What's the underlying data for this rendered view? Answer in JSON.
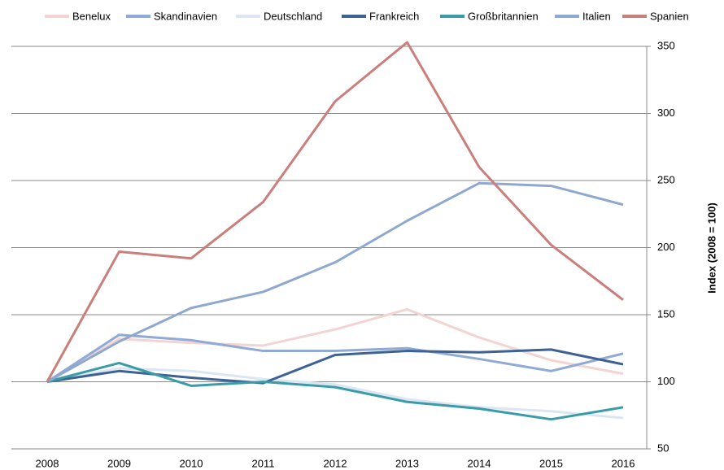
{
  "chart_data": {
    "type": "line",
    "ylabel": "Index (2008 = 100)",
    "categories": [
      "2008",
      "2009",
      "2010",
      "2011",
      "2012",
      "2013",
      "2014",
      "2015",
      "2016"
    ],
    "series": [
      {
        "name": "Benelux",
        "color": "#f2d4d2",
        "values": [
          100,
          132,
          129,
          127,
          139,
          154,
          133,
          116,
          106
        ]
      },
      {
        "name": "Skandinavien",
        "color": "#8faad5",
        "values": [
          100,
          135,
          131,
          123,
          123,
          125,
          117,
          108,
          121
        ]
      },
      {
        "name": "Deutschland",
        "color": "#dce6f2",
        "values": [
          100,
          110,
          108,
          102,
          98,
          87,
          81,
          78,
          73
        ]
      },
      {
        "name": "Frankreich",
        "color": "#3e6294",
        "values": [
          100,
          108,
          103,
          99,
          120,
          123,
          122,
          124,
          113
        ]
      },
      {
        "name": "Großbritannien",
        "color": "#3a9ca8",
        "values": [
          100,
          114,
          97,
          100,
          96,
          85,
          80,
          72,
          81
        ]
      },
      {
        "name": "Italien",
        "color": "#8fa8cf",
        "values": [
          100,
          130,
          155,
          167,
          189,
          220,
          248,
          246,
          232
        ]
      },
      {
        "name": "Spanien",
        "color": "#c9807c",
        "values": [
          100,
          197,
          192,
          234,
          309,
          353,
          260,
          202,
          161
        ]
      }
    ],
    "ylim": [
      50,
      350
    ],
    "yticks": [
      50,
      100,
      150,
      200,
      250,
      300,
      350
    ],
    "grid": true,
    "yaxis_side": "right",
    "legend": "top"
  }
}
